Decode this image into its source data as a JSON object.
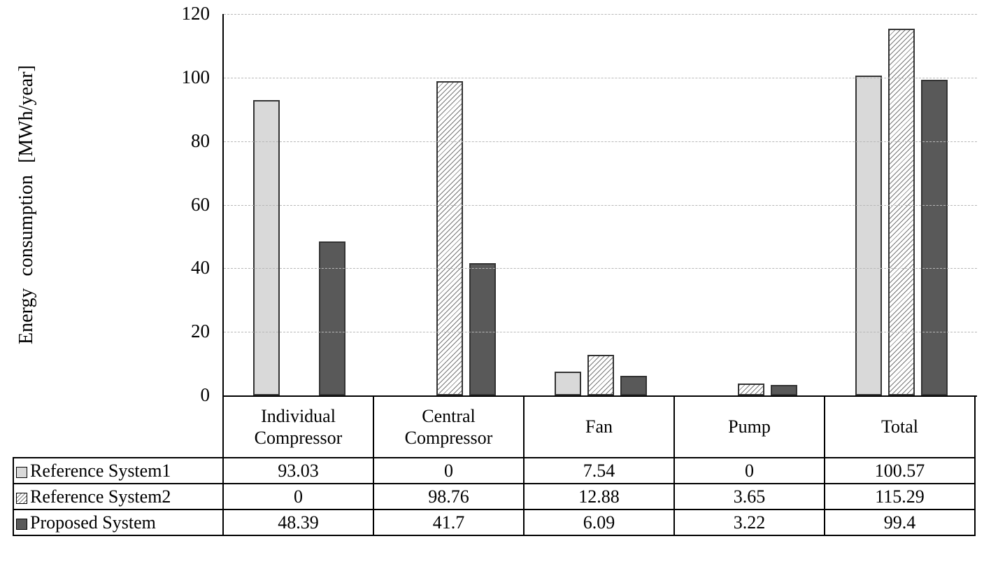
{
  "chart_data": {
    "type": "bar",
    "title": "",
    "ylabel": "Energy consumption [MWh/year]",
    "xlabel": "",
    "ylim": [
      0,
      120
    ],
    "yticks": [
      0,
      20,
      40,
      60,
      80,
      100,
      120
    ],
    "grid": "horizontal-dashed",
    "legend_position": "table-left",
    "categories": [
      "Individual Compressor",
      "Central Compressor",
      "Fan",
      "Pump",
      "Total"
    ],
    "series": [
      {
        "name": "Reference System1",
        "pattern": "solid",
        "fill": "#d9d9d9",
        "border": "#333333",
        "values": [
          93.03,
          0,
          7.54,
          0,
          100.57
        ]
      },
      {
        "name": "Reference System2",
        "pattern": "diagonal-hatch",
        "fill": "#ffffff",
        "border": "#333333",
        "values": [
          0,
          98.76,
          12.88,
          3.65,
          115.29
        ]
      },
      {
        "name": "Proposed System",
        "pattern": "solid",
        "fill": "#595959",
        "border": "#333333",
        "values": [
          48.39,
          41.7,
          6.09,
          3.22,
          99.4
        ]
      }
    ]
  },
  "colors": {
    "background": "#ffffff",
    "axis_line": "#000000",
    "gridline": "#b8b8b8",
    "text": "#000000",
    "series1_fill": "#d9d9d9",
    "series2_hatch_line": "#777777",
    "series3_fill": "#595959",
    "table_border": "#000000"
  }
}
